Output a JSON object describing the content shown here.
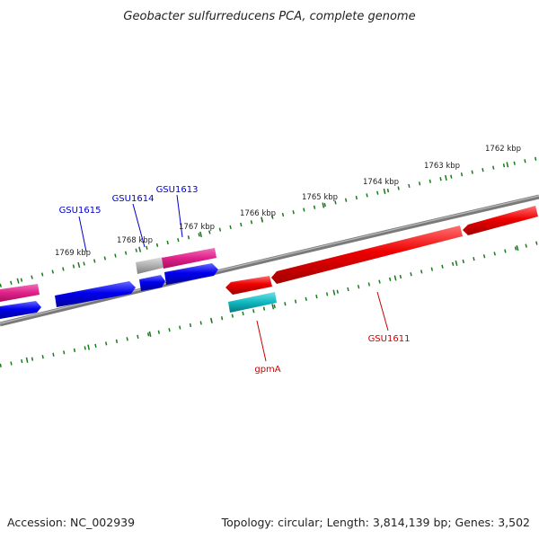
{
  "title": "Geobacter sulfurreducens PCA, complete genome",
  "footer": {
    "accession": "Accession: NC_002939",
    "summary": "Topology: circular; Length: 3,814,139 bp; Genes: 3,502"
  },
  "ruler_labels": [
    "1762 kbp",
    "1763 kbp",
    "1764 kbp",
    "1765 kbp",
    "1766 kbp",
    "1767 kbp",
    "1768 kbp",
    "1769 kbp"
  ],
  "gene_labels": [
    {
      "id": "gsu1615",
      "text": "GSU1615",
      "color": "#0000cc"
    },
    {
      "id": "gsu1614",
      "text": "GSU1614",
      "color": "#0000cc"
    },
    {
      "id": "gsu1613",
      "text": "GSU1613",
      "color": "#0000cc"
    },
    {
      "id": "gpma",
      "text": "gpmA",
      "color": "#cc0000"
    },
    {
      "id": "gsu1611",
      "text": "GSU1611",
      "color": "#cc0000"
    }
  ],
  "colors": {
    "backbone": "#808080",
    "tick": "#1a7a1a",
    "forward_gene": "#0000ee",
    "reverse_gene": "#ee0000",
    "pink_gene": "#e0208a",
    "gray_gene": "#b0b0b0",
    "cyan_gene": "#10b8c0"
  }
}
